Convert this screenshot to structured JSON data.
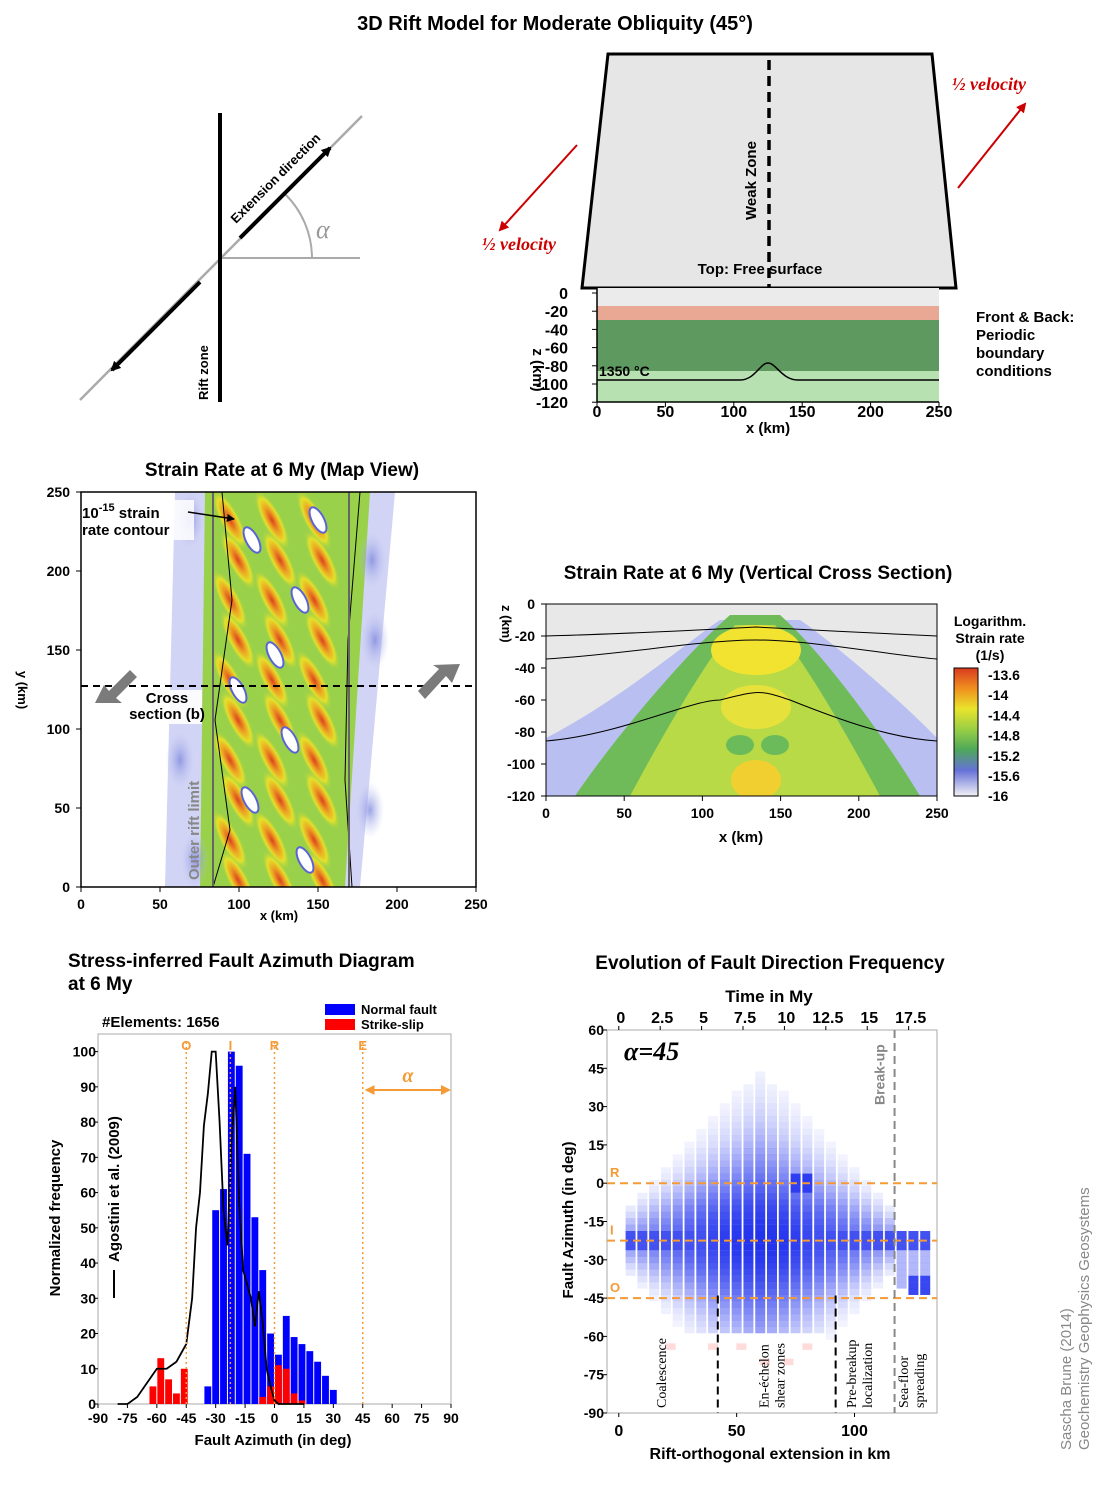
{
  "page": {
    "title": "3D Rift Model for Moderate Obliquity (45°)",
    "credit_line1": "Sascha Brune (2014)",
    "credit_line2": "Geochemistry Geophysics Geosystems"
  },
  "colors": {
    "normal_fault": "#0000ff",
    "strike_slip": "#ff0000",
    "velocity_arrow": "#cc0000",
    "guide_orange": "#f59a35",
    "upper_crust": "#e9a893",
    "lithosphere": "#5e9a5f",
    "asthenosphere": "#b8e1b2",
    "free_surface": "#e6e6e6"
  },
  "panel_a": {
    "extension_label": "Extension direction",
    "alpha_symbol": "α",
    "rift_zone_label": "Rift zone"
  },
  "panel_b": {
    "half_velocity_left": "½ velocity",
    "half_velocity_right": "½ velocity",
    "weak_zone_label": "Weak Zone",
    "top_label": "Top: Free surface",
    "temperature_label": "1350 °C",
    "boundary_label": [
      "Front & Back:",
      "Periodic",
      "boundary",
      "conditions"
    ],
    "xlabel": "x (km)",
    "ylabel": "z (km)",
    "x_ticks": [
      "0",
      "50",
      "100",
      "150",
      "200",
      "250"
    ],
    "z_ticks": [
      "0",
      "-20",
      "-40",
      "-60",
      "-80",
      "-100",
      "-120"
    ]
  },
  "panel_c": {
    "title": "Strain Rate at 6 My (Map View)",
    "contour_label_base": "10",
    "contour_label_exp": "-15",
    "contour_label_rest": " strain",
    "contour_label_line2": "rate contour",
    "cross_section_line1": "Cross",
    "cross_section_line2": "section (b)",
    "outer_rift_limit": "Outer rift limit",
    "xlabel": "x (km)",
    "ylabel": "y (km)",
    "x_ticks": [
      "0",
      "50",
      "100",
      "150",
      "200",
      "250"
    ],
    "y_ticks": [
      "0",
      "50",
      "100",
      "150",
      "200",
      "250"
    ]
  },
  "panel_d": {
    "title": "Strain Rate at 6 My (Vertical Cross Section)",
    "xlabel": "x (km)",
    "ylabel": "z (km)",
    "x_ticks": [
      "0",
      "50",
      "100",
      "150",
      "200",
      "250"
    ],
    "z_ticks": [
      "0",
      "-20",
      "-40",
      "-60",
      "-80",
      "-100",
      "-120"
    ],
    "colorbar_title": [
      "Logarithm.",
      "Strain rate",
      "(1/s)"
    ],
    "colorbar_ticks": [
      "-13.6",
      "-14",
      "-14.4",
      "-14.8",
      "-15.2",
      "-15.6",
      "-16"
    ]
  },
  "chart_data": [
    {
      "type": "bar",
      "title": "Stress-inferred Fault Azimuth Diagram at 6 My",
      "title_line1": "Stress-inferred Fault Azimuth Diagram",
      "title_line2": "at 6 My",
      "annotation": "#Elements: 1656",
      "xlabel": "Fault Azimuth (in deg)",
      "ylabel": "Normalized frequency",
      "xlim": [
        -90,
        90
      ],
      "ylim": [
        0,
        105
      ],
      "x_ticks": [
        "-90",
        "-75",
        "-60",
        "-45",
        "-30",
        "-15",
        "0",
        "15",
        "30",
        "45",
        "60",
        "75",
        "90"
      ],
      "y_ticks": [
        "0",
        "10",
        "20",
        "30",
        "40",
        "50",
        "60",
        "70",
        "80",
        "90",
        "100"
      ],
      "bin_width_deg": 4,
      "legend": [
        "Normal fault",
        "Strike-slip"
      ],
      "legend_position": "top-right",
      "guide_lines": [
        {
          "label": "O",
          "azimuth": -45
        },
        {
          "label": "I",
          "azimuth": -22.5
        },
        {
          "label": "R",
          "azimuth": 0
        },
        {
          "label": "E",
          "azimuth": 45
        }
      ],
      "alpha_symbol": "α",
      "series": [
        {
          "name": "Normal fault",
          "x": [
            -38,
            -34,
            -30,
            -26,
            -22,
            -18,
            -14,
            -10,
            -6,
            -2,
            2,
            6,
            10,
            14,
            18,
            22,
            26,
            30
          ],
          "values": [
            0,
            5,
            55,
            61,
            100,
            96,
            71,
            53,
            38,
            20,
            14,
            25,
            19,
            17,
            15,
            12,
            8,
            4
          ]
        },
        {
          "name": "Strike-slip",
          "x": [
            -62,
            -58,
            -54,
            -50,
            -46,
            -42,
            -6,
            -2,
            2,
            6,
            10,
            14
          ],
          "values": [
            5,
            13,
            7,
            3,
            10,
            0,
            2,
            5,
            11,
            10,
            3,
            1
          ]
        },
        {
          "name": "Agostini et al. (2009)",
          "type": "line",
          "x": [
            -80,
            -75,
            -70,
            -65,
            -60,
            -55,
            -50,
            -45,
            -42,
            -40,
            -38,
            -36,
            -34,
            -32,
            -30,
            -28,
            -26,
            -24,
            -22,
            -20,
            -18,
            -16,
            -14,
            -12,
            -10,
            -8,
            -6,
            -4,
            -2,
            0,
            2,
            4,
            6,
            10,
            15
          ],
          "values": [
            0,
            0,
            2,
            6,
            10,
            10,
            12,
            17,
            30,
            50,
            60,
            79,
            88,
            100,
            100,
            80,
            55,
            45,
            74,
            90,
            57,
            38,
            34,
            30,
            22,
            32,
            23,
            10,
            5,
            1,
            0,
            0,
            0,
            0,
            0
          ]
        }
      ]
    },
    {
      "type": "heatmap",
      "title": "Evolution of Fault Direction Frequency",
      "top_axis_label": "Time in My",
      "top_ticks": [
        "0",
        "2.5",
        "5",
        "7.5",
        "10",
        "12.5",
        "15",
        "17.5"
      ],
      "top_tick_values": [
        0,
        2.5,
        5,
        7.5,
        10,
        12.5,
        15,
        17.5
      ],
      "xlabel": "Rift-orthogonal extension in km",
      "ylabel": "Fault Azimuth (in deg)",
      "x_ticks": [
        "0",
        "50",
        "100"
      ],
      "xlim": [
        -5,
        135
      ],
      "ylim": [
        -90,
        60
      ],
      "y_ticks": [
        "60",
        "45",
        "30",
        "15",
        "0",
        "-15",
        "-30",
        "-45",
        "-60",
        "-75",
        "-90"
      ],
      "alpha_label": "α=45",
      "breakup_label": "Break-up",
      "guide_lines": [
        {
          "label": "R",
          "azimuth": 0
        },
        {
          "label": "I",
          "azimuth": -22.5
        },
        {
          "label": "O",
          "azimuth": -45
        }
      ],
      "phase_boundaries_km": [
        42,
        92,
        117
      ],
      "phases": [
        "Coalescence",
        "En-échelon shear zones",
        "Pre-breakup localization",
        "Sea-floor spreading"
      ],
      "phase_centers_km": [
        20,
        67,
        104,
        126
      ]
    }
  ]
}
